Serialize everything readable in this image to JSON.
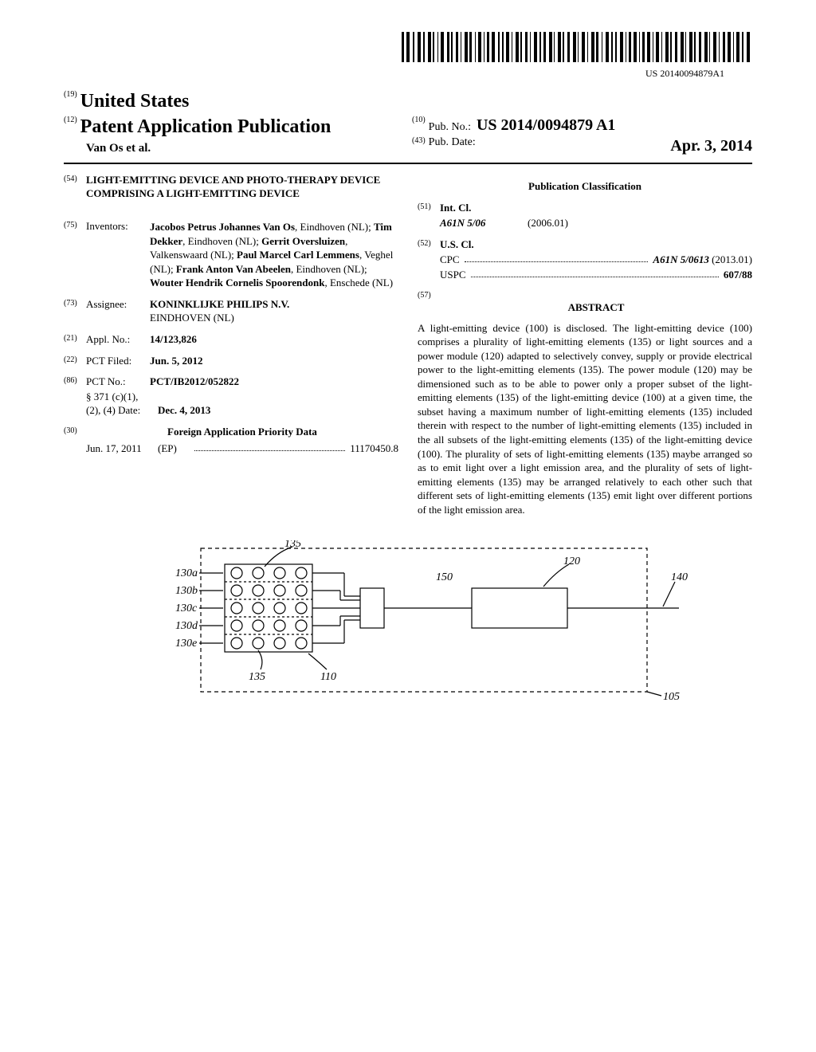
{
  "barcode_text": "US 20140094879A1",
  "header": {
    "us_label": "United States",
    "us_num": "(19)",
    "pub_label": "Patent Application Publication",
    "pub_num": "(12)",
    "author": "Van Os et al.",
    "pubno_num": "(10)",
    "pubno_label": "Pub. No.:",
    "pubno_val": "US 2014/0094879 A1",
    "pubdate_num": "(43)",
    "pubdate_label": "Pub. Date:",
    "pubdate_val": "Apr. 3, 2014"
  },
  "title": {
    "num": "(54)",
    "text": "LIGHT-EMITTING DEVICE AND PHOTO-THERAPY DEVICE COMPRISING A LIGHT-EMITTING DEVICE"
  },
  "inventors": {
    "num": "(75)",
    "label": "Inventors:",
    "html": "<b>Jacobos Petrus Johannes Van Os</b>, Eindhoven (NL); <b>Tim Dekker</b>, Eindhoven (NL); <b>Gerrit Oversluizen</b>, Valkenswaard (NL); <b>Paul Marcel Carl Lemmens</b>, Veghel (NL); <b>Frank Anton Van Abeelen</b>, Eindhoven (NL); <b>Wouter Hendrik Cornelis Spoorendonk</b>, Enschede (NL)"
  },
  "assignee": {
    "num": "(73)",
    "label": "Assignee:",
    "val": "KONINKLIJKE PHILIPS N.V.",
    "loc": "EINDHOVEN (NL)"
  },
  "applno": {
    "num": "(21)",
    "label": "Appl. No.:",
    "val": "14/123,826"
  },
  "pctfiled": {
    "num": "(22)",
    "label": "PCT Filed:",
    "val": "Jun. 5, 2012"
  },
  "pctno": {
    "num": "(86)",
    "label": "PCT No.:",
    "val": "PCT/IB2012/052822",
    "sub1": "§ 371 (c)(1),",
    "sub2": "(2), (4) Date:",
    "sub2val": "Dec. 4, 2013"
  },
  "priority": {
    "num": "(30)",
    "heading": "Foreign Application Priority Data",
    "date": "Jun. 17, 2011",
    "country": "(EP)",
    "appnum": "11170450.8"
  },
  "classification": {
    "heading": "Publication Classification",
    "intcl": {
      "num": "(51)",
      "label": "Int. Cl.",
      "code": "A61N 5/06",
      "year": "(2006.01)"
    },
    "uscl": {
      "num": "(52)",
      "label": "U.S. Cl.",
      "cpc_label": "CPC",
      "cpc_val": "A61N 5/0613",
      "cpc_year": "(2013.01)",
      "uspc_label": "USPC",
      "uspc_val": "607/88"
    }
  },
  "abstract": {
    "num": "(57)",
    "heading": "ABSTRACT",
    "text": "A light-emitting device (100) is disclosed. The light-emitting device (100) comprises a plurality of light-emitting elements (135) or light sources and a power module (120) adapted to selectively convey, supply or provide electrical power to the light-emitting elements (135). The power module (120) may be dimensioned such as to be able to power only a proper subset of the light-emitting elements (135) of the light-emitting device (100) at a given time, the subset having a maximum number of light-emitting elements (135) included therein with respect to the number of light-emitting elements (135) included in the all subsets of the light-emitting elements (135) of the light-emitting device (100). The plurality of sets of light-emitting elements (135) maybe arranged so as to emit light over a light emission area, and the plurality of sets of light-emitting elements (135) may be arranged relatively to each other such that different sets of light-emitting elements (135) emit light over different portions of the light emission area."
  },
  "figure": {
    "labels": {
      "l130a": "130a",
      "l130b": "130b",
      "l130c": "130c",
      "l130d": "130d",
      "l130e": "130e",
      "l135t": "135",
      "l135b": "135",
      "l110": "110",
      "l150": "150",
      "l120": "120",
      "l140": "140",
      "l105": "105"
    },
    "style": {
      "led_rows": 5,
      "led_cols": 4,
      "stroke": "#000000",
      "stroke_width": 1.2,
      "dash": "5,4",
      "font_size": 14,
      "font_style": "italic"
    }
  }
}
